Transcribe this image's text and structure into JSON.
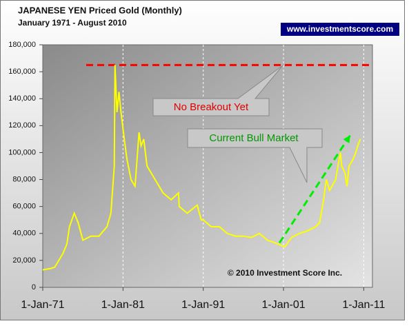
{
  "chart_data": {
    "type": "line",
    "title": "JAPANESE YEN Priced Gold (Monthly)",
    "subtitle": "January 1971 - August 2010",
    "source": "www.investmentscore.com",
    "copyright": "© 2010 Investment Score Inc.",
    "annotations": [
      "No Breakout Yet",
      "Current Bull Market"
    ],
    "x": [
      "1971-01-01",
      "1972-01-01",
      "1972-07-01",
      "1973-01-01",
      "1973-07-01",
      "1974-01-01",
      "1974-05-01",
      "1974-12-01",
      "1975-06-01",
      "1976-01-01",
      "1977-01-01",
      "1978-01-01",
      "1979-01-01",
      "1979-07-01",
      "1979-12-01",
      "1980-01-01",
      "1980-04-01",
      "1980-07-01",
      "1980-10-01",
      "1981-03-01",
      "1981-07-01",
      "1982-01-01",
      "1982-07-01",
      "1983-01-01",
      "1983-04-01",
      "1983-08-01",
      "1984-01-01",
      "1985-01-01",
      "1985-07-01",
      "1986-01-01",
      "1987-01-01",
      "1987-12-01",
      "1988-01-01",
      "1989-01-01",
      "1990-04-01",
      "1990-10-01",
      "1991-01-01",
      "1992-01-01",
      "1993-01-01",
      "1994-01-01",
      "1995-01-01",
      "1996-01-01",
      "1997-01-01",
      "1998-01-01",
      "1999-01-01",
      "2000-01-01",
      "2001-03-01",
      "2002-01-01",
      "2003-01-01",
      "2004-01-01",
      "2005-01-01",
      "2005-07-01",
      "2006-01-01",
      "2006-05-01",
      "2006-10-01",
      "2007-07-01",
      "2008-02-01",
      "2008-04-01",
      "2008-09-01",
      "2008-12-01",
      "2009-03-01",
      "2009-09-01",
      "2010-01-01",
      "2010-04-01",
      "2010-08-01"
    ],
    "series": [
      {
        "name": "JPY Gold",
        "color": "#ffff00",
        "values": [
          13000,
          14000,
          15000,
          20000,
          25000,
          32000,
          45000,
          55000,
          48000,
          35000,
          38000,
          38000,
          45000,
          55000,
          90000,
          165000,
          130000,
          145000,
          130000,
          110000,
          95000,
          80000,
          75000,
          115000,
          105000,
          110000,
          90000,
          80000,
          75000,
          70000,
          65000,
          70000,
          60000,
          55000,
          61000,
          50000,
          50000,
          45000,
          45000,
          40000,
          38000,
          38000,
          37000,
          40000,
          35000,
          33000,
          30000,
          37000,
          40000,
          42000,
          45000,
          48000,
          65000,
          80000,
          72000,
          80000,
          100000,
          90000,
          85000,
          75000,
          90000,
          95000,
          100000,
          105000,
          110000
        ]
      }
    ],
    "reference_lines": [
      {
        "value": 165000,
        "color": "#ff0000"
      }
    ],
    "trend_arrow": {
      "x": [
        "2000-07-01",
        "2009-05-01"
      ],
      "values": [
        33000,
        113000
      ],
      "color": "#00ee00"
    },
    "xlim": [
      "1971-01-01",
      "2012-02-01"
    ],
    "xticks": [
      {
        "value": "1971-01-01",
        "label": "1-Jan-71"
      },
      {
        "value": "1981-01-01",
        "label": "1-Jan-81"
      },
      {
        "value": "1991-01-01",
        "label": "1-Jan-91"
      },
      {
        "value": "2001-01-01",
        "label": "1-Jan-01"
      },
      {
        "value": "2011-01-01",
        "label": "1-Jan-11"
      }
    ],
    "ylim": [
      0,
      180000
    ],
    "yticks": [
      0,
      {
        "value": 20000,
        "label": "20,000"
      },
      {
        "value": 40000,
        "label": "40,000"
      },
      {
        "value": 60000,
        "label": "60,000"
      },
      {
        "value": 80000,
        "label": "80,000"
      },
      {
        "value": 100000,
        "label": "100,000"
      },
      {
        "value": 120000,
        "label": "120,000"
      },
      {
        "value": 140000,
        "label": "140,000"
      },
      {
        "value": 160000,
        "label": "160,000"
      },
      {
        "value": 180000,
        "label": "180,000"
      }
    ],
    "grid": true
  }
}
